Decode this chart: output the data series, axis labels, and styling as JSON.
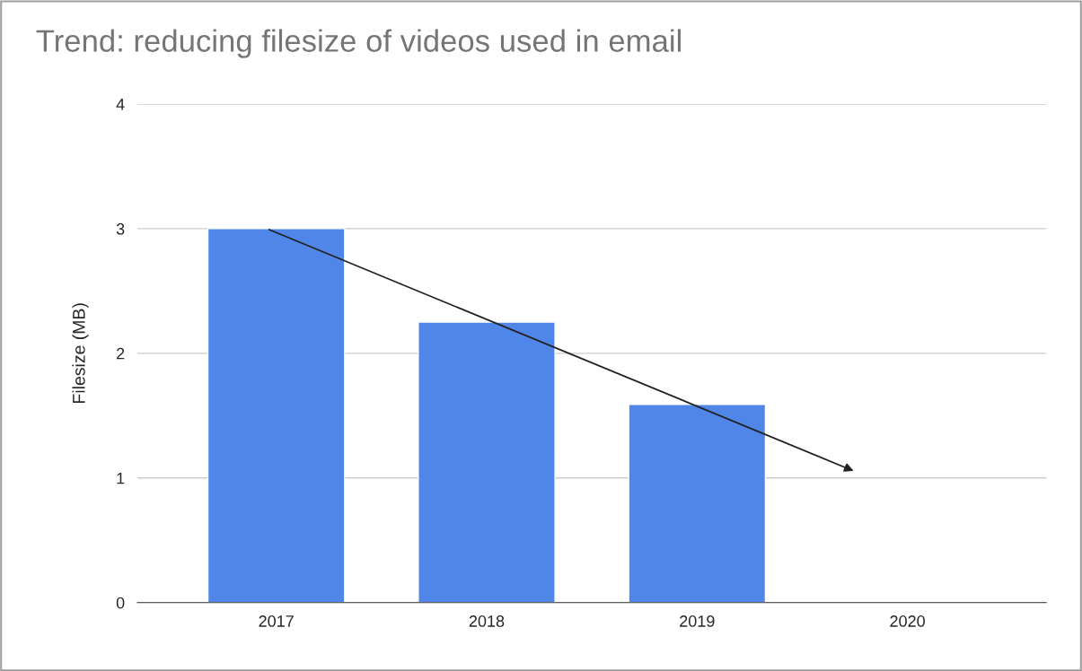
{
  "chart_data": {
    "type": "bar",
    "title": "Trend: reducing filesize of videos used in email",
    "ylabel": "Filesize (MB)",
    "categories": [
      "2017",
      "2018",
      "2019",
      "2020"
    ],
    "series": [
      {
        "color": "#4f86e8",
        "values": [
          3,
          2.25,
          1.59,
          null
        ]
      }
    ],
    "ylim": [
      0,
      4
    ],
    "yticks": [
      0,
      1,
      2,
      3,
      4
    ],
    "grid": "y",
    "legend": false
  }
}
